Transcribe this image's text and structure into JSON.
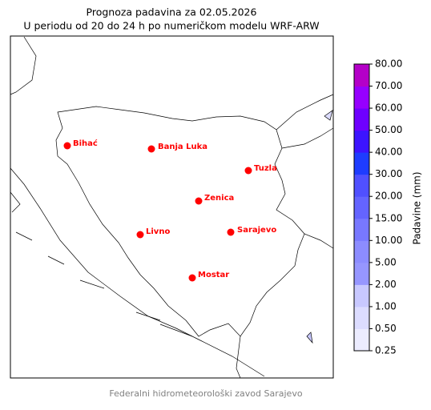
{
  "title": "Prognoza padavina za 02.05.2026",
  "subtitle": "U periodu od 20 do 24 h po numeričkom modelu WRF-ARW",
  "cities": [
    "Bihać",
    "Banja Luka",
    "Tuzla",
    "Zenica",
    "Livno",
    "Sarajevo",
    "Mostar"
  ],
  "colorbar": {
    "label": "Padavine (mm)",
    "ticks": [
      {
        "value": 0.25,
        "label": "0.25"
      },
      {
        "value": 0.5,
        "label": "0.50"
      },
      {
        "value": 1,
        "label": "1.00"
      },
      {
        "value": 2,
        "label": "2.00"
      },
      {
        "value": 5,
        "label": "5.00"
      },
      {
        "value": 10,
        "label": "10.00"
      },
      {
        "value": 15,
        "label": "15.00"
      },
      {
        "value": 20,
        "label": "20.00"
      },
      {
        "value": 30,
        "label": "30.00"
      },
      {
        "value": 40,
        "label": "40.00"
      },
      {
        "value": 50,
        "label": "50.00"
      },
      {
        "value": 60,
        "label": "60.00"
      },
      {
        "value": 70,
        "label": "70.00"
      },
      {
        "value": 80,
        "label": "80.00"
      }
    ],
    "colors": [
      "#ececff",
      "#dcdcff",
      "#c8c8ff",
      "#9696ff",
      "#8c8cff",
      "#7878ff",
      "#6464ff",
      "#5050ff",
      "#1e3cff",
      "#3c14ff",
      "#6e00ff",
      "#9600ff",
      "#b400c8"
    ]
  },
  "footer": "Federalni hidrometeorološki zavod Sarajevo"
}
